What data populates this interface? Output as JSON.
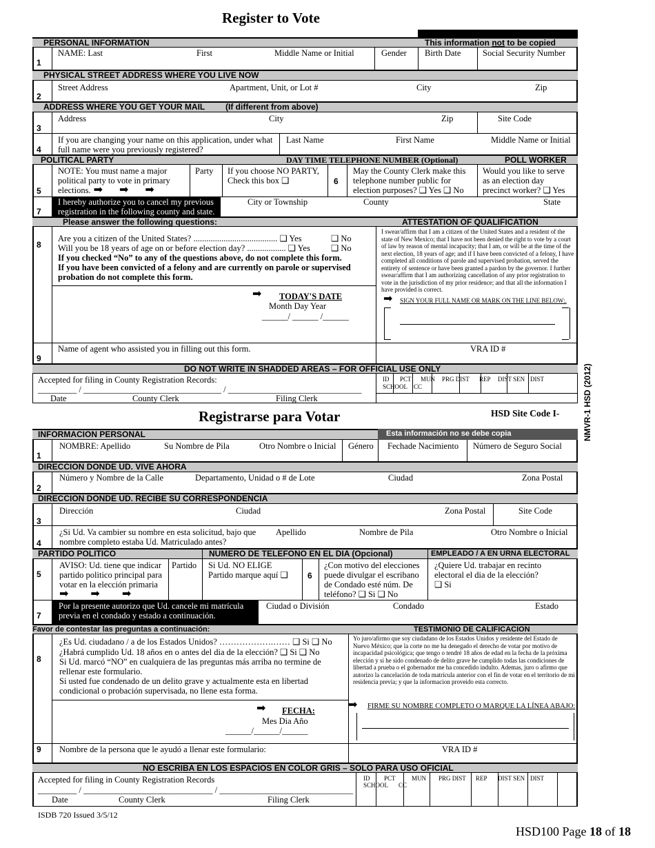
{
  "en": {
    "title": "Register to Vote",
    "h_personal": "PERSONAL INFORMATION",
    "h_nocopy_a": "This information ",
    "h_nocopy_b": "not",
    "h_nocopy_c": " to be copied",
    "r1": {
      "num": "1",
      "last": "NAME: Last",
      "first": "First",
      "middle": "Middle Name or Initial",
      "gender": "Gender",
      "birth": "Birth Date",
      "ssn": "Social Security Number"
    },
    "h_street": "PHYSICAL STREET ADDRESS WHERE YOU LIVE NOW",
    "r2": {
      "num": "2",
      "street": "Street Address",
      "apt": "Apartment, Unit, or Lot #",
      "city": "City",
      "zip": "Zip"
    },
    "h_mail": "ADDRESS WHERE YOU GET YOUR MAIL",
    "h_mail_note": "(If different from above)",
    "r3": {
      "num": "3",
      "address": "Address",
      "city": "City",
      "zip": "Zip",
      "site": "Site Code"
    },
    "r4": {
      "num": "4",
      "q1": "If you are changing your name on this application, under what",
      "q2": "full name were you previously registered?",
      "last": "Last Name",
      "first": "First Name",
      "middle": "Middle Name or Initial"
    },
    "h_party": "POLITICAL PARTY",
    "h_phone": "DAY TIME TELEPHONE NUMBER (Optional)",
    "h_poll": "POLL WORKER",
    "r5": {
      "num": "5",
      "note1": "NOTE: You must name a major",
      "note2": "political party to vote in primary",
      "note3": "elections.",
      "party": "Party",
      "np1": "If you choose NO PARTY,",
      "np2": "Check this box ❑",
      "six": "6",
      "ph1": "May the County Clerk make this",
      "ph2": "telephone number public for",
      "ph3": "election purposes? ❑ Yes  ❑  No",
      "pw1": "Would you like to serve",
      "pw2": "as an election day",
      "pw3": "precinct worker? ❑ Yes"
    },
    "r7": {
      "num": "7",
      "auth1": "I hereby authorize you to cancel my previous",
      "auth2": "registration in the following county and state.",
      "city": "City or Township",
      "county": "County",
      "state": "State"
    },
    "h_questions": "Please answer the following questions:",
    "h_attest": "ATTESTATION OF QUALIFICATION",
    "r8": {
      "num": "8",
      "q1": "Are you a citizen of the United States? ....................................... ❑  Yes",
      "q1no": "❑  No",
      "q2": "Will you be 18 years of age on or before election day? .................. ❑  Yes",
      "q2no": "❑  No",
      "w1": "If you checked “No” to any of the questions above, do not complete this form.",
      "w2": "If you have been convicted of a felony and are currently on parole or supervised",
      "w3": "probation do not complete this form.",
      "date": "TODAY'S DATE",
      "mdy": "Month   Day    Year",
      "dline": "______/ ______ /______",
      "attest": "I swear/affirm that I am a citizen of the United States and a resident of the state of New Mexico; that I have not been denied the right to vote by a court of law by reason of mental incapacity; that I am, or will be at the time of the next election, 18 years of age; and if I have been convicted of a felony, I have completed all conditions of parole and supervised probation, served the entirety of sentence or have been granted a pardon by the governor. I further swear/affirm that I am authorizing cancellation of any prior registration to vote in the jurisdiction of my prior residence; and that all the information I have provided is correct.",
      "sign": "SIGN YOUR FULL NAME OR MARK ON THE LINE BELOW:."
    },
    "r9": {
      "num": "9",
      "agent": "Name of agent who assisted you in filling out this form.",
      "vra": "VRA  ID #"
    },
    "h_official": "DO NOT WRITE IN SHADDED AREAS – FOR OFFICIAL USE ONLY",
    "off": {
      "accepted": "Accepted for filing in County Registration Records:",
      "line": "_________ / ________________________________ / _______________________________",
      "date": "Date",
      "clerk": "County Clerk",
      "filing": "Filing Clerk",
      "cols": [
        "ID",
        "PCT",
        "MUN",
        "PRG DIST",
        "REP",
        "DIST SEN",
        "DIST"
      ],
      "school": "SCHOOL",
      "cc": "CC"
    },
    "site_code": "HSD Site Code I-",
    "side": "NMVR-1 HSD (2012)"
  },
  "es": {
    "title": "Registrarse para Votar",
    "h_personal": "INFORMACION PERSONAL",
    "h_nocopy": "Esta información no se debe copia",
    "r1": {
      "num": "1",
      "last": "NOMBRE:  Apellido",
      "first": "Su Nombre de Pila",
      "middle": "Otro Nombre o Inicial",
      "gender": "Género",
      "birth": "Fechade Nacimiento",
      "ssn": "Número de Seguro Social"
    },
    "h_street": "DIRECCION DONDE UD. VIVE AHORA",
    "r2": {
      "num": "2",
      "street": "Número y Nombre de la Calle",
      "apt": "Departamento, Unidad o # de Lote",
      "city": "Ciudad",
      "zip": "Zona Postal"
    },
    "h_mail": "DIRECCION  DONDE  UD.  RECIBE SU CORRESPONDENCIA",
    "r3": {
      "num": "3",
      "address": "Dirección",
      "city": "Ciudad",
      "zip": "Zona Postal",
      "site": "Site Code"
    },
    "r4": {
      "num": "4",
      "q1": "¿Si Ud. Va cambier su nombre en esta solicitud, bajo que",
      "q2": "nombre completo estaba Ud. Matriculado antes?",
      "last": "Apellido",
      "first": "Nombre de Pila",
      "middle": "Otro Nombre o Inicial"
    },
    "h_party": "PARTIDO POLITICO",
    "h_phone": "NUMERO DE TELEFONO EN EL DIA (Opcional)",
    "h_poll": "EMPLEADO / A EN URNA  ELECTORAL",
    "r5": {
      "num": "5",
      "note1": "AVISO: Ud. tiene que indicar",
      "note2": "partido politico principal para",
      "note3": "votar en la elección primaria",
      "party": "Partido",
      "np1": "Si Ud. NO ELIGE",
      "np2": "Partido marque aquí  ❑",
      "six": "6",
      "ph1": "¿Con motivo del elecciones",
      "ph2": "puede divulgar el escribano",
      "ph3": "de Condado esté núm. De",
      "ph4": "teléfono?  ❑  Si ❑  No",
      "pw1": "¿Quiere Ud. trabajar en recinto",
      "pw2": "electoral el dia de la elección?",
      "pw3": "❑  Si"
    },
    "r7": {
      "num": "7",
      "auth1": "Por la presente autorizo que Ud. cancele mi matrícula",
      "auth2": "previa en el condado y estado a continuación.",
      "city": "Ciudad o División",
      "county": "Condado",
      "state": "Estado"
    },
    "h_questions": "Favor de contestar las preguntas a continuación:",
    "h_attest": "TESTIMONIO DE CALIFICACION",
    "r8": {
      "num": "8",
      "q1": "¿Es Ud. ciudadano / a de los Estados Unidos? ……………….…… ❑  Si  ❑  No",
      "q2": "¿Habrá cumplido Ud. 18 años en o antes del dia de la elección?    ❑  Si  ❑  No",
      "w1": "Si Ud. marcó “NO” en cualquiera de las preguntas más arriba no termine de",
      "w2": "rellenar este formulario.",
      "w3": "Si usted fue condenado de un delito grave y actualmente esta en libertad",
      "w4": "condicional o probación supervisada, no llene esta forma.",
      "date": "FECHA:",
      "mdy": "Mes       Dia       Año",
      "dline": "______/______/______",
      "attest": "Yo juro/afirmo que soy ciudadano de los Estados Unidos y residente del Estado de Nuevo México; que la corte no me ha denegado el derecho de votar por motivo de incapacidad psicológica; que tengo o tendré 18 años de edad en la fecha de la próxima elección y si he sido condenado de delito grave he cumplido todas las condiciones de libertad a prueba o el gobernador me ha concedido indulto. Ademas, juro o afirmo que autorizo la  cancelación de toda matrícula anterior con el fin de votar en el territorio de mi residencia previa; y que la informacion proveido esta correcto.",
      "sign": "FIRME SU NOMBRE COMPLETO O MARQUE LA LÍNEA ABAJO:"
    },
    "r9": {
      "num": "9",
      "agent": "Nombre de la persona que le ayudó a llenar este formulario:",
      "vra": "VRA  ID #"
    },
    "h_official": "NO ESCRIBA EN LOS ESPACIOS EN COLOR GRIS – SOLO PARA USO OFICIAL",
    "off": {
      "accepted": "Accepted for filing in County Registration Records",
      "line": "_________ / ______________________________ / _______________________________",
      "date": "Date",
      "clerk": "County Clerk",
      "filing": "Filing Clerk",
      "cols": [
        "ID",
        "PCT",
        "MUN",
        "PRG DIST",
        "REP",
        "DIST SEN",
        "DIST"
      ],
      "school": "SCHOOL",
      "cc": "CC"
    }
  },
  "footer": {
    "issued": "ISDB 720 Issued 3/5/12",
    "page_pre": "HSD100 Page ",
    "page_num": "18",
    "page_mid": " of ",
    "page_total": "18"
  }
}
